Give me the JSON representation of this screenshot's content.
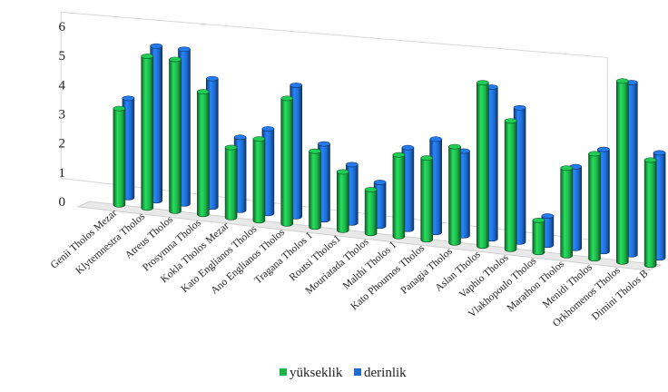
{
  "chart_data": {
    "type": "bar",
    "title": "",
    "xlabel": "",
    "ylabel": "",
    "ylim": [
      0,
      6
    ],
    "yticks": [
      0,
      1,
      2,
      3,
      4,
      5,
      6
    ],
    "grid": false,
    "legend_position": "bottom",
    "categories": [
      "Genii Tholos Mezar",
      "Klytemnestra Tholos",
      "Atreus Tholos",
      "Prosymna Tholos",
      "Kokla Tholos Mezar",
      "Kato Englianos Tholos",
      "Ano Englianos Tholos",
      "Tragana Tholos 1",
      "Routsi Tholos1",
      "Mouriatada Tholos",
      "Malthi Tholos 1",
      "Kato Phournos Tholos",
      "Panagia Tholos",
      "Aslan Tholos",
      "Vaphio Tholos",
      "Vlakhopoulo Tholos",
      "Marathon Tholos",
      "Menidi Tholos",
      "Orkhomenos Tholos",
      "Dimini Tholos B"
    ],
    "series": [
      {
        "name": "yükseklik",
        "color": "#1db34a",
        "values": [
          3.3,
          5.2,
          5.2,
          4.2,
          2.4,
          2.8,
          4.3,
          2.6,
          2.0,
          1.5,
          2.8,
          2.8,
          3.3,
          5.6,
          4.4,
          1.1,
          3.0,
          3.6,
          6.2,
          3.6
        ]
      },
      {
        "name": "derinlik",
        "color": "#1f6bd0",
        "values": [
          3.4,
          5.3,
          5.3,
          4.4,
          2.5,
          2.9,
          4.5,
          2.6,
          2.0,
          1.5,
          2.8,
          3.2,
          2.9,
          5.2,
          4.6,
          1.0,
          2.8,
          3.5,
          5.9,
          3.6
        ]
      }
    ]
  }
}
